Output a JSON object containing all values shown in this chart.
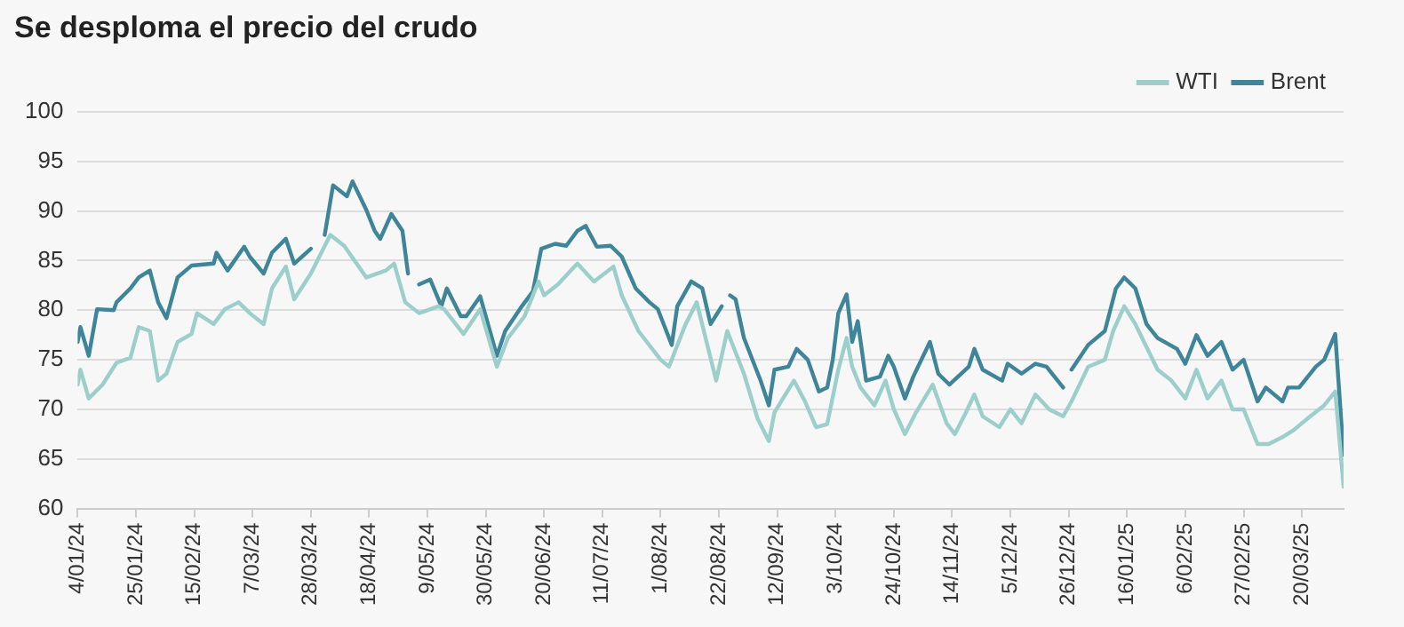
{
  "chart_data": {
    "type": "line",
    "title": "Se desploma el precio del crudo",
    "xlim": [
      "2024-01-04",
      "2025-04-04"
    ],
    "xticks": [
      {
        "value": "2024-01-04",
        "label": "4/01/24"
      },
      {
        "value": "2024-01-25",
        "label": "25/01/24"
      },
      {
        "value": "2024-02-15",
        "label": "15/02/24"
      },
      {
        "value": "2024-03-07",
        "label": "7/03/24"
      },
      {
        "value": "2024-03-28",
        "label": "28/03/24"
      },
      {
        "value": "2024-04-18",
        "label": "18/04/24"
      },
      {
        "value": "2024-05-09",
        "label": "9/05/24"
      },
      {
        "value": "2024-05-30",
        "label": "30/05/24"
      },
      {
        "value": "2024-06-20",
        "label": "20/06/24"
      },
      {
        "value": "2024-07-11",
        "label": "11/07/24"
      },
      {
        "value": "2024-08-01",
        "label": "1/08/24"
      },
      {
        "value": "2024-08-22",
        "label": "22/08/24"
      },
      {
        "value": "2024-09-12",
        "label": "12/09/24"
      },
      {
        "value": "2024-10-03",
        "label": "3/10/24"
      },
      {
        "value": "2024-10-24",
        "label": "24/10/24"
      },
      {
        "value": "2024-11-14",
        "label": "14/11/24"
      },
      {
        "value": "2024-12-05",
        "label": "5/12/24"
      },
      {
        "value": "2024-12-26",
        "label": "26/12/24"
      },
      {
        "value": "2025-01-16",
        "label": "16/01/25"
      },
      {
        "value": "2025-02-06",
        "label": "6/02/25"
      },
      {
        "value": "2025-02-27",
        "label": "27/02/25"
      },
      {
        "value": "2025-03-20",
        "label": "20/03/25"
      }
    ],
    "ylim": [
      60,
      100
    ],
    "yticks": [
      60,
      65,
      70,
      75,
      80,
      85,
      90,
      95,
      100
    ],
    "grid": "y",
    "legend": "top right",
    "marker": "none",
    "line_style": "solid",
    "series": [
      {
        "name": "WTI",
        "color": "#9ccfcb",
        "x": [
          "2024-01-04",
          "2024-01-05",
          "2024-01-08",
          "2024-01-13",
          "2024-01-18",
          "2024-01-23",
          "2024-01-26",
          "2024-01-30",
          "2024-02-02",
          "2024-02-05",
          "2024-02-09",
          "2024-02-14",
          "2024-02-16",
          "2024-02-22",
          "2024-02-26",
          "2024-03-02",
          "2024-03-06",
          "2024-03-11",
          "2024-03-14",
          "2024-03-19",
          "2024-03-22",
          "2024-03-28",
          "2024-04-04",
          "2024-04-09",
          "2024-04-17",
          "2024-04-24",
          "2024-04-27",
          "2024-05-01",
          "2024-05-06",
          "2024-05-13",
          "2024-05-15",
          "2024-05-22",
          "2024-05-28",
          "2024-06-03",
          "2024-06-07",
          "2024-06-13",
          "2024-06-18",
          "2024-06-20",
          "2024-06-25",
          "2024-07-02",
          "2024-07-08",
          "2024-07-15",
          "2024-07-18",
          "2024-07-24",
          "2024-08-01",
          "2024-08-04",
          "2024-08-10",
          "2024-08-14",
          "2024-08-21",
          "2024-08-25",
          "2024-08-31",
          "2024-09-05",
          "2024-09-09",
          "2024-09-11",
          "2024-09-18",
          "2024-09-22",
          "2024-09-26",
          "2024-09-30",
          "2024-10-04",
          "2024-10-07",
          "2024-10-09",
          "2024-10-12",
          "2024-10-17",
          "2024-10-21",
          "2024-10-24",
          "2024-10-28",
          "2024-11-01",
          "2024-11-07",
          "2024-11-12",
          "2024-11-15",
          "2024-11-19",
          "2024-11-22",
          "2024-11-25",
          "2024-12-01",
          "2024-12-05",
          "2024-12-09",
          "2024-12-14",
          "2024-12-19",
          "2024-12-24",
          "2024-12-27",
          "2025-01-02",
          "2025-01-08",
          "2025-01-11",
          "2025-01-15",
          "2025-01-19",
          "2025-01-27",
          "2025-02-01",
          "2025-02-06",
          "2025-02-10",
          "2025-02-14",
          "2025-02-19",
          "2025-02-23",
          "2025-02-27",
          "2025-03-04",
          "2025-03-08",
          "2025-03-13",
          "2025-03-17",
          "2025-03-23",
          "2025-03-28",
          "2025-04-01",
          "2025-04-04"
        ],
        "values": [
          72.5,
          74,
          71.1,
          72.5,
          74.7,
          75.2,
          78.3,
          77.9,
          72.9,
          73.6,
          76.8,
          77.6,
          79.7,
          78.6,
          80.1,
          80.8,
          79.7,
          78.6,
          82.2,
          84.4,
          81.1,
          83.7,
          87.6,
          86.5,
          83.3,
          84,
          84.7,
          80.8,
          79.7,
          80.4,
          80.1,
          77.6,
          80.1,
          74.3,
          77.2,
          79.4,
          82.9,
          81.5,
          82.6,
          84.7,
          82.9,
          84.4,
          81.5,
          77.9,
          75,
          74.3,
          78.6,
          80.8,
          72.9,
          77.9,
          73.6,
          69,
          66.8,
          69.7,
          72.9,
          70.8,
          68.2,
          68.5,
          74,
          77.2,
          74.3,
          72.2,
          70.4,
          72.9,
          70,
          67.5,
          69.7,
          72.5,
          68.6,
          67.5,
          69.7,
          71.5,
          69.3,
          68.2,
          70,
          68.6,
          71.5,
          70,
          69.3,
          70.8,
          74.3,
          75,
          77.9,
          80.4,
          78.6,
          74,
          72.9,
          71.1,
          74,
          71.1,
          72.9,
          70,
          70,
          66.5,
          66.5,
          67.2,
          67.9,
          69.3,
          70.4,
          71.8,
          62.2
        ]
      },
      {
        "name": "Brent",
        "color": "#3f8599",
        "x": [
          "2024-01-04",
          "2024-01-05",
          "2024-01-08",
          "2024-01-11",
          "2024-01-17",
          "2024-01-18",
          "2024-01-23",
          "2024-01-26",
          "2024-01-30",
          "2024-02-02",
          "2024-02-05",
          "2024-02-09",
          "2024-02-14",
          "2024-02-22",
          "2024-02-23",
          "2024-02-27",
          "2024-03-04",
          "2024-03-06",
          "2024-03-11",
          "2024-03-14",
          "2024-03-19",
          "2024-03-22",
          "2024-03-28",
          "2024-03-30",
          "2024-04-02",
          "2024-04-05",
          "2024-04-10",
          "2024-04-12",
          "2024-04-17",
          "2024-04-20",
          "2024-04-22",
          "2024-04-26",
          "2024-04-30",
          "2024-05-02",
          "2024-05-04",
          "2024-05-06",
          "2024-05-10",
          "2024-05-14",
          "2024-05-16",
          "2024-05-21",
          "2024-05-23",
          "2024-05-28",
          "2024-06-03",
          "2024-06-06",
          "2024-06-12",
          "2024-06-16",
          "2024-06-19",
          "2024-06-24",
          "2024-06-28",
          "2024-07-02",
          "2024-07-05",
          "2024-07-09",
          "2024-07-14",
          "2024-07-18",
          "2024-07-23",
          "2024-07-28",
          "2024-07-31",
          "2024-08-05",
          "2024-08-07",
          "2024-08-12",
          "2024-08-16",
          "2024-08-19",
          "2024-08-23",
          "2024-08-24",
          "2024-08-26",
          "2024-08-28",
          "2024-08-31",
          "2024-09-06",
          "2024-09-09",
          "2024-09-11",
          "2024-09-16",
          "2024-09-19",
          "2024-09-23",
          "2024-09-27",
          "2024-09-30",
          "2024-10-02",
          "2024-10-04",
          "2024-10-07",
          "2024-10-09",
          "2024-10-11",
          "2024-10-14",
          "2024-10-19",
          "2024-10-22",
          "2024-10-24",
          "2024-10-28",
          "2024-10-31",
          "2024-11-06",
          "2024-11-09",
          "2024-11-13",
          "2024-11-20",
          "2024-11-22",
          "2024-11-25",
          "2024-12-02",
          "2024-12-04",
          "2024-12-09",
          "2024-12-14",
          "2024-12-18",
          "2024-12-24",
          "2024-12-25",
          "2024-12-27",
          "2025-01-02",
          "2025-01-08",
          "2025-01-12",
          "2025-01-15",
          "2025-01-19",
          "2025-01-23",
          "2025-01-27",
          "2025-02-03",
          "2025-02-06",
          "2025-02-10",
          "2025-02-14",
          "2025-02-19",
          "2025-02-23",
          "2025-02-27",
          "2025-03-04",
          "2025-03-07",
          "2025-03-13",
          "2025-03-15",
          "2025-03-19",
          "2025-03-25",
          "2025-03-28",
          "2025-04-01",
          "2025-04-04"
        ],
        "values": [
          76.8,
          78.3,
          75.4,
          80.1,
          80,
          80.8,
          82.2,
          83.3,
          84,
          80.8,
          79.2,
          83.3,
          84.5,
          84.7,
          85.8,
          84,
          86.4,
          85.4,
          83.7,
          85.8,
          87.2,
          84.7,
          86.2,
          null,
          87.6,
          92.6,
          91.5,
          93,
          90.1,
          88,
          87.2,
          89.7,
          88,
          83.7,
          null,
          82.6,
          83.1,
          80.4,
          82.2,
          79.4,
          79.4,
          81.4,
          75.4,
          77.9,
          80.4,
          81.9,
          86.2,
          86.7,
          86.5,
          88,
          88.5,
          86.4,
          86.5,
          85.4,
          82.2,
          80.8,
          80.1,
          76.5,
          80.4,
          82.9,
          82.2,
          78.6,
          80.4,
          null,
          81.5,
          81.1,
          77.2,
          72.9,
          70.4,
          74,
          74.3,
          76.1,
          75,
          71.8,
          72.2,
          75,
          79.7,
          81.6,
          76.8,
          78.9,
          72.9,
          73.3,
          75.4,
          74.3,
          71.1,
          73.3,
          76.8,
          73.6,
          72.5,
          74.3,
          76.1,
          74,
          72.9,
          74.6,
          73.6,
          74.6,
          74.3,
          72.2,
          null,
          74,
          76.5,
          77.9,
          82.2,
          83.3,
          82.2,
          78.6,
          77.2,
          76.1,
          74.6,
          77.5,
          75.4,
          76.8,
          74,
          75,
          70.8,
          72.2,
          70.8,
          72.2,
          72.2,
          74.3,
          75,
          77.6,
          65.4
        ]
      }
    ]
  }
}
